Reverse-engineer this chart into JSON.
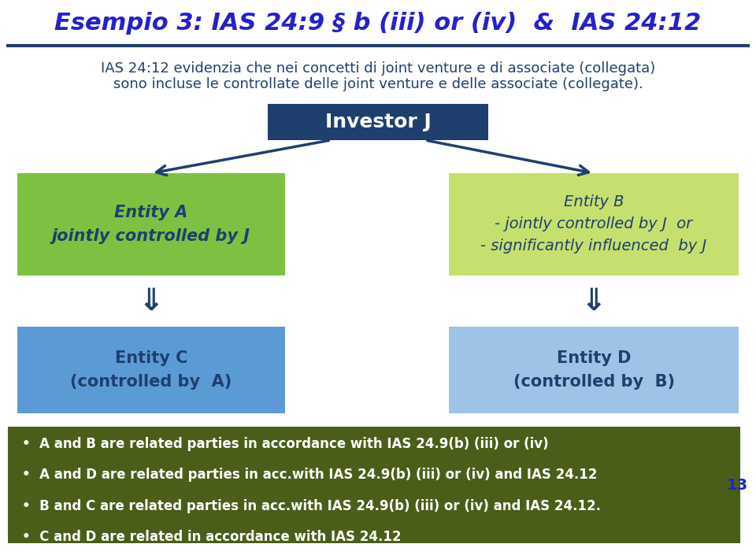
{
  "title": "Esempio 3: IAS 24:9 § b (iii) or (iv)  &  IAS 24:12",
  "subtitle_line1": "IAS 24:12 evidenzia che nei concetti di joint venture e di associate (collegata)",
  "subtitle_line2": "sono incluse le controllate delle joint venture e delle associate (collegate).",
  "investor_label": "Investor J",
  "investor_color": "#1f3f6e",
  "entity_a_label": "Entity A\njointly controlled by J",
  "entity_a_color": "#7dc142",
  "entity_b_label": "Entity B\n- jointly controlled by J  or\n- significantly influenced  by J",
  "entity_b_color": "#c5e06e",
  "entity_c_label": "Entity C\n(controlled by  A)",
  "entity_c_color": "#5b9bd5",
  "entity_d_label": "Entity D\n(controlled by  B)",
  "entity_d_color": "#9dc3e6",
  "arrow_color": "#1f3f6e",
  "bottom_bg_color": "#4a5e1a",
  "bottom_text_color": "#ffffff",
  "bottom_lines": [
    "•  A and B are related parties in accordance with IAS 24.9(b) (iii) or (iv)",
    "•  A and D are related parties in acc.with IAS 24.9(b) (iii) or (iv) and IAS 24.12",
    "•  B and C are related parties in acc.with IAS 24.9(b) (iii) or (iv) and IAS 24.12.",
    "•  C and D are related in accordance with IAS 24.12"
  ],
  "page_number": "13",
  "title_color": "#2222cc",
  "title_fontsize": 22,
  "subtitle_color": "#1f3f6e",
  "subtitle_fontsize": 13,
  "entity_text_color_dark": "#1f3f6e",
  "divider_color": "#1f3f6e",
  "bg_color": "#ffffff"
}
